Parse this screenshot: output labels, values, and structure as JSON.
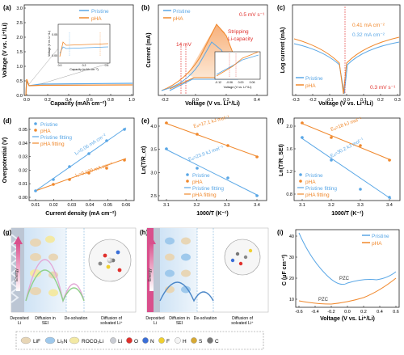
{
  "colors": {
    "pristine": "#5aa7e6",
    "pha": "#f0882c",
    "red_marker": "#e0302c",
    "dark": "#222222"
  },
  "legend": {
    "pristine": "Pristine",
    "pha": "pHA"
  },
  "panels": {
    "a": {
      "letter": "(a)",
      "ylabel": "Voltage (V vs. Li⁺/Li)",
      "xlabel": "Capacity (mAh cm⁻²)",
      "yticks": [
        "0.0",
        "0.5",
        "1.0",
        "1.5",
        "2.0",
        "2.5",
        "3.0"
      ],
      "xticks": [
        "0.0",
        "0.2",
        "0.4",
        "0.6",
        "0.8",
        "1.0"
      ],
      "inset": {
        "ylabel": "Voltage (V vs. Li⁺/Li)",
        "xlabel": "Capacity (mAh cm⁻²)",
        "xticks": [
          "0.0",
          "0.2",
          "0.4"
        ],
        "yticks": [
          "0.00",
          "0.05"
        ]
      }
    },
    "b": {
      "letter": "(b)",
      "ylabel": "Current (mA)",
      "xlabel": "Voltage (V vs. Li⁺/Li)",
      "xticks": [
        "-0.2",
        "0.0",
        "0.2",
        "0.4"
      ],
      "rate": "0.5 mV s⁻¹",
      "shift": "14 mV",
      "stripping1": "Stripping",
      "stripping2": "Li-capacity",
      "inset_xlabel": "Voltage (V vs. Li⁺/Li)",
      "inset_xticks": [
        "-0.12",
        "-0.06",
        "0.00",
        "0.06"
      ]
    },
    "c": {
      "letter": "(c)",
      "ylabel": "Log current (mA)",
      "xlabel": "Voltage (V vs. Li⁺/Li)",
      "xticks": [
        "-0.3",
        "-0.2",
        "-0.1",
        "0.0",
        "0.1",
        "0.2",
        "0.3"
      ],
      "i1": "0.41 mA cm⁻²",
      "i2": "0.32 mA cm⁻²",
      "rate": "0.3 mV s⁻¹"
    },
    "d": {
      "letter": "(d)",
      "ylabel": "Overpotential (V)",
      "xlabel": "Current density (mA cm⁻²)",
      "yticks": [
        "0.00",
        "0.01",
        "0.02",
        "0.03",
        "0.04",
        "0.05"
      ],
      "xticks": [
        "0.01",
        "0.02",
        "0.03",
        "0.04",
        "0.05",
        "0.06"
      ],
      "legend_fit1": "Pristine fitting",
      "legend_fit2": "pHA fitting",
      "i0_1": "I₀=0.06 mA cm⁻²",
      "i0_2": "I₀=0.100 mA cm⁻²"
    },
    "e": {
      "letter": "(e)",
      "ylabel": "Ln(T/R_ct)",
      "xlabel": "1000/T (K⁻¹)",
      "yticks": [
        "2.5",
        "3.0",
        "3.5",
        "4.0"
      ],
      "xticks": [
        "3.1",
        "3.2",
        "3.3",
        "3.4"
      ],
      "ea1": "Eₐ=17.1 kJ mol⁻¹",
      "ea2": "Eₐ=23.9 kJ mol⁻¹",
      "legend_fit1": "Pristine fitting",
      "legend_fit2": "pHA fitting"
    },
    "f": {
      "letter": "(f)",
      "ylabel": "Ln(T/R_SEI)",
      "xlabel": "1000/T (K⁻¹)",
      "yticks": [
        "0.8",
        "1.2",
        "1.6",
        "2.0"
      ],
      "xticks": [
        "3.1",
        "3.2",
        "3.3",
        "3.4"
      ],
      "ea1": "Eₐ=18 kJ mol⁻¹",
      "ea2": "Eₐ=30.2 kJ mol⁻¹",
      "legend_fit1": "Pristine fitting",
      "legend_fit2": "pHA fitting"
    },
    "g": {
      "letter": "(g)",
      "energy": "Energy",
      "labels": [
        "Deposited Li",
        "Diffusion in SEI",
        "De-solvation",
        "Diffusion of solvated Li⁺"
      ]
    },
    "h": {
      "letter": "(h)",
      "energy": "Energy",
      "labels": [
        "Deposited Li",
        "Diffusion in SEI",
        "De-solvation",
        "Diffusion of solvated Li⁺"
      ]
    },
    "i": {
      "letter": "(i)",
      "ylabel": "C (μF cm⁻²)",
      "xlabel": "Voltage (V vs. Li⁺/Li)",
      "yticks": [
        "10",
        "20",
        "30",
        "40"
      ],
      "xticks": [
        "-0.6",
        "-0.4",
        "-0.2",
        "0.0",
        "0.2",
        "0.4",
        "0.6"
      ],
      "pzc": "PZC"
    }
  },
  "bottom_legend": [
    {
      "label": "LiF",
      "icon": "oval-beige"
    },
    {
      "label": "Li₃N",
      "icon": "oval-grid-blue"
    },
    {
      "label": "ROCO₂Li",
      "icon": "oval-dots-yellow"
    },
    {
      "label": "Li",
      "icon": "sphere-silver"
    },
    {
      "label": "O",
      "icon": "sphere-red"
    },
    {
      "label": "N",
      "icon": "sphere-blue"
    },
    {
      "label": "F",
      "icon": "sphere-yellow"
    },
    {
      "label": "H",
      "icon": "sphere-white"
    },
    {
      "label": "S",
      "icon": "sphere-gold"
    },
    {
      "label": "C",
      "icon": "sphere-grey"
    }
  ]
}
